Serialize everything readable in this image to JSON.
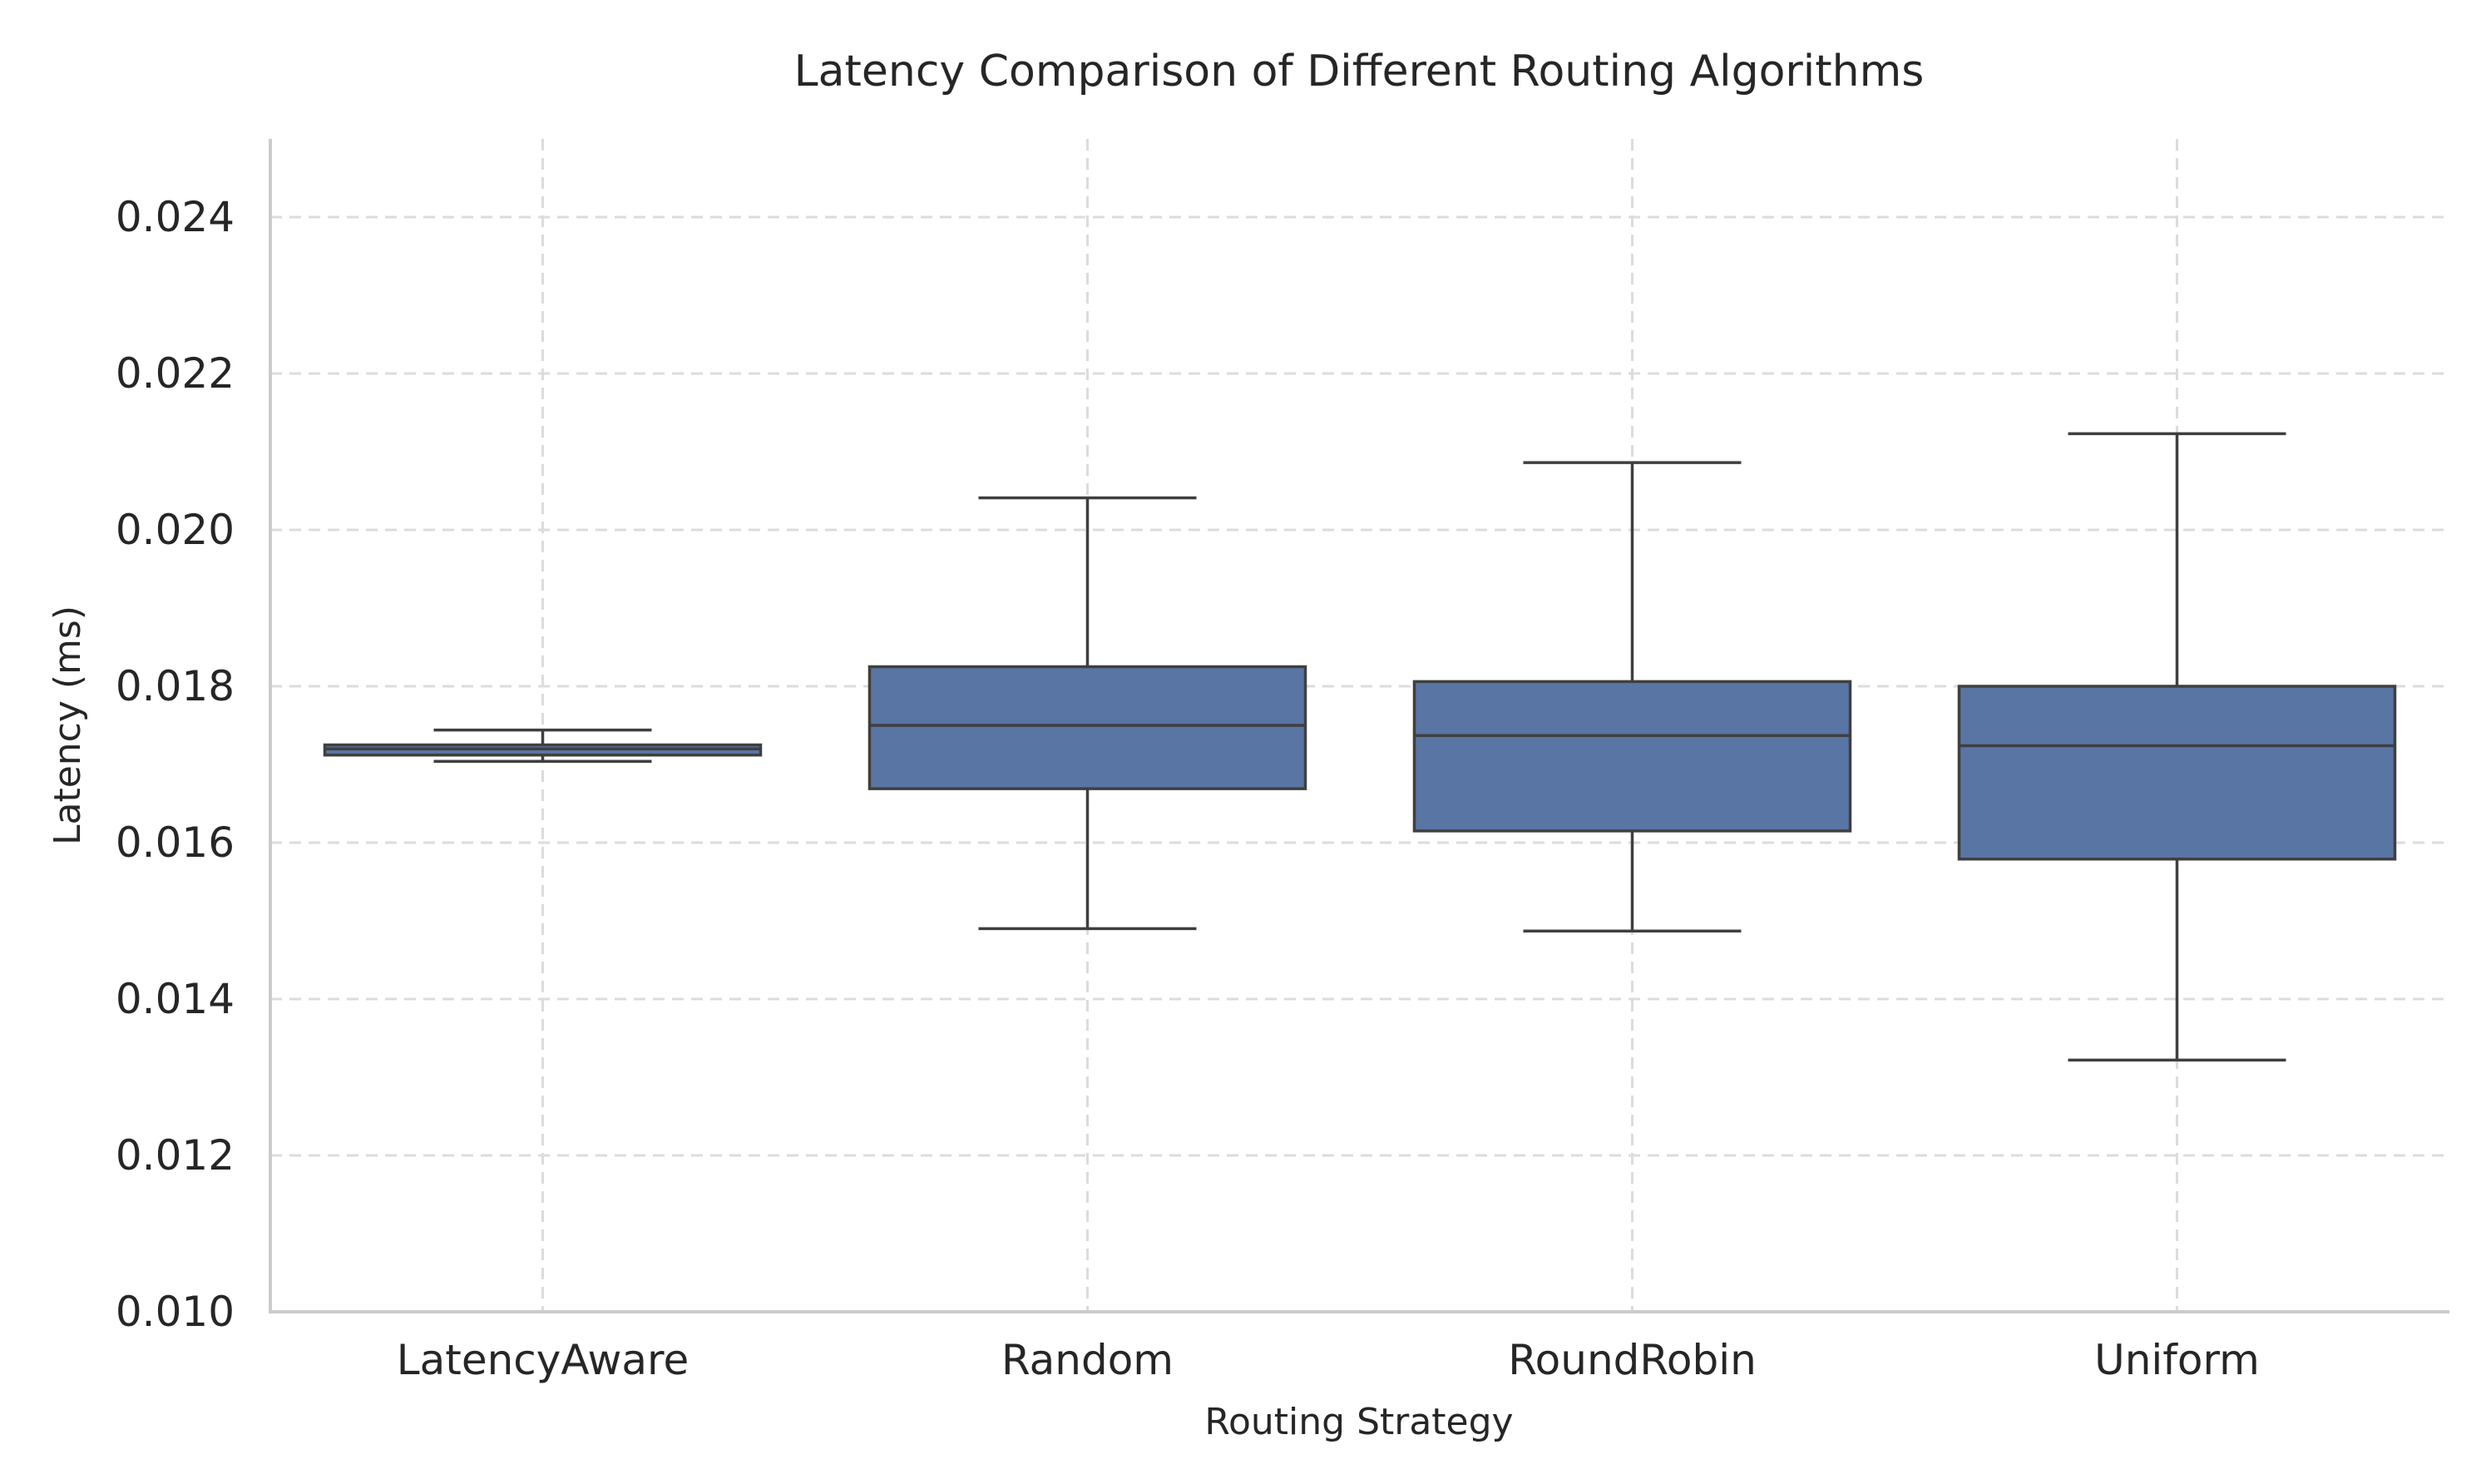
{
  "chart_data": {
    "type": "box",
    "title": "Latency Comparison of Different Routing Algorithms",
    "xlabel": "Routing Strategy",
    "ylabel": "Latency (ms)",
    "categories": [
      "LatencyAware",
      "Random",
      "RoundRobin",
      "Uniform"
    ],
    "ylim": [
      0.01,
      0.025
    ],
    "yticks": [
      "0.010",
      "0.012",
      "0.014",
      "0.016",
      "0.018",
      "0.020",
      "0.022",
      "0.024"
    ],
    "grid": true,
    "box_color": "#5975a4",
    "boxes": [
      {
        "category": "LatencyAware",
        "whisker_low": 0.01704,
        "q1": 0.01712,
        "median": 0.0172,
        "q3": 0.01725,
        "whisker_high": 0.01744
      },
      {
        "category": "Random",
        "whisker_low": 0.0149,
        "q1": 0.01669,
        "median": 0.0175,
        "q3": 0.01825,
        "whisker_high": 0.02041
      },
      {
        "category": "RoundRobin",
        "whisker_low": 0.01487,
        "q1": 0.01615,
        "median": 0.01737,
        "q3": 0.01806,
        "whisker_high": 0.02086
      },
      {
        "category": "Uniform",
        "whisker_low": 0.01322,
        "q1": 0.01579,
        "median": 0.01724,
        "q3": 0.018,
        "whisker_high": 0.02123
      }
    ]
  }
}
